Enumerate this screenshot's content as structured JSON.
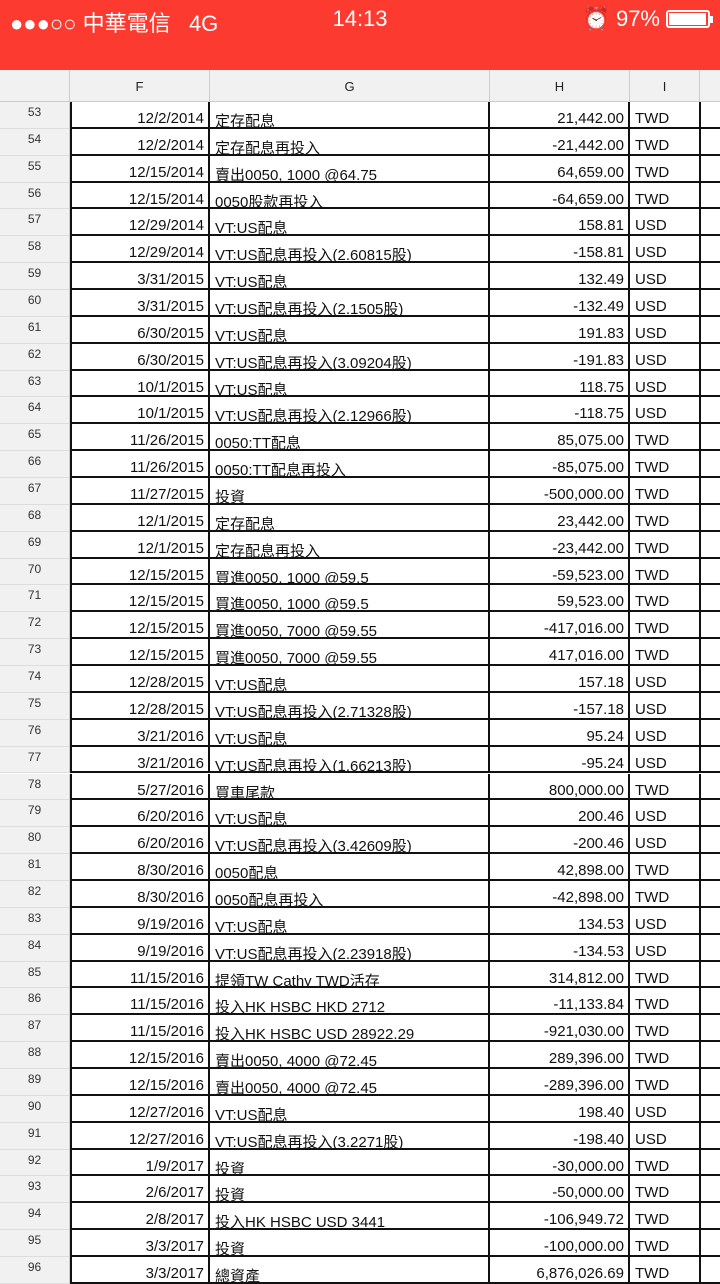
{
  "status_bar": {
    "signal": "●●●○○",
    "carrier": "中華電信",
    "network": "4G",
    "time": "14:13",
    "battery": "97%",
    "battery_level": 0.97,
    "alarm_icon": "alarm-clock-icon"
  },
  "columns": [
    "F",
    "G",
    "H",
    "I"
  ],
  "rows": [
    [
      "53",
      "12/2/2014",
      "定存配息",
      "21,442.00",
      "TWD"
    ],
    [
      "54",
      "12/2/2014",
      "定存配息再投入",
      "-21,442.00",
      "TWD"
    ],
    [
      "55",
      "12/15/2014",
      "賣出0050, 1000 @64.75",
      "64,659.00",
      "TWD"
    ],
    [
      "56",
      "12/15/2014",
      "0050股款再投入",
      "-64,659.00",
      "TWD"
    ],
    [
      "57",
      "12/29/2014",
      "VT:US配息",
      "158.81",
      "USD"
    ],
    [
      "58",
      "12/29/2014",
      "VT:US配息再投入(2.60815股)",
      "-158.81",
      "USD"
    ],
    [
      "59",
      "3/31/2015",
      "VT:US配息",
      "132.49",
      "USD"
    ],
    [
      "60",
      "3/31/2015",
      "VT:US配息再投入(2.1505股)",
      "-132.49",
      "USD"
    ],
    [
      "61",
      "6/30/2015",
      "VT:US配息",
      "191.83",
      "USD"
    ],
    [
      "62",
      "6/30/2015",
      "VT:US配息再投入(3.09204股)",
      "-191.83",
      "USD"
    ],
    [
      "63",
      "10/1/2015",
      "VT:US配息",
      "118.75",
      "USD"
    ],
    [
      "64",
      "10/1/2015",
      "VT:US配息再投入(2.12966股)",
      "-118.75",
      "USD"
    ],
    [
      "65",
      "11/26/2015",
      "0050:TT配息",
      "85,075.00",
      "TWD"
    ],
    [
      "66",
      "11/26/2015",
      "0050:TT配息再投入",
      "-85,075.00",
      "TWD"
    ],
    [
      "67",
      "11/27/2015",
      "投資",
      "-500,000.00",
      "TWD"
    ],
    [
      "68",
      "12/1/2015",
      "定存配息",
      "23,442.00",
      "TWD"
    ],
    [
      "69",
      "12/1/2015",
      "定存配息再投入",
      "-23,442.00",
      "TWD"
    ],
    [
      "70",
      "12/15/2015",
      "買進0050, 1000 @59.5",
      "-59,523.00",
      "TWD"
    ],
    [
      "71",
      "12/15/2015",
      "買進0050, 1000 @59.5",
      "59,523.00",
      "TWD"
    ],
    [
      "72",
      "12/15/2015",
      "買進0050, 7000 @59.55",
      "-417,016.00",
      "TWD"
    ],
    [
      "73",
      "12/15/2015",
      "買進0050, 7000 @59.55",
      "417,016.00",
      "TWD"
    ],
    [
      "74",
      "12/28/2015",
      "VT:US配息",
      "157.18",
      "USD"
    ],
    [
      "75",
      "12/28/2015",
      "VT:US配息再投入(2.71328股)",
      "-157.18",
      "USD"
    ],
    [
      "76",
      "3/21/2016",
      "VT:US配息",
      "95.24",
      "USD"
    ],
    [
      "77",
      "3/21/2016",
      "VT:US配息再投入(1.66213股)",
      "-95.24",
      "USD"
    ],
    [
      "78",
      "5/27/2016",
      "買車尾款",
      "800,000.00",
      "TWD"
    ],
    [
      "79",
      "6/20/2016",
      "VT:US配息",
      "200.46",
      "USD"
    ],
    [
      "80",
      "6/20/2016",
      "VT:US配息再投入(3.42609股)",
      "-200.46",
      "USD"
    ],
    [
      "81",
      "8/30/2016",
      "0050配息",
      "42,898.00",
      "TWD"
    ],
    [
      "82",
      "8/30/2016",
      "0050配息再投入",
      "-42,898.00",
      "TWD"
    ],
    [
      "83",
      "9/19/2016",
      "VT:US配息",
      "134.53",
      "USD"
    ],
    [
      "84",
      "9/19/2016",
      "VT:US配息再投入(2.23918股)",
      "-134.53",
      "USD"
    ],
    [
      "85",
      "11/15/2016",
      "提領TW Cathy TWD活存",
      "314,812.00",
      "TWD"
    ],
    [
      "86",
      "11/15/2016",
      "投入HK HSBC HKD 2712",
      "-11,133.84",
      "TWD"
    ],
    [
      "87",
      "11/15/2016",
      "投入HK HSBC USD 28922.29",
      "-921,030.00",
      "TWD"
    ],
    [
      "88",
      "12/15/2016",
      "賣出0050, 4000 @72.45",
      "289,396.00",
      "TWD"
    ],
    [
      "89",
      "12/15/2016",
      "賣出0050, 4000 @72.45",
      "-289,396.00",
      "TWD"
    ],
    [
      "90",
      "12/27/2016",
      "VT:US配息",
      "198.40",
      "USD"
    ],
    [
      "91",
      "12/27/2016",
      "VT:US配息再投入(3.2271股)",
      "-198.40",
      "USD"
    ],
    [
      "92",
      "1/9/2017",
      "投資",
      "-30,000.00",
      "TWD"
    ],
    [
      "93",
      "2/6/2017",
      "投資",
      "-50,000.00",
      "TWD"
    ],
    [
      "94",
      "2/8/2017",
      "投入HK HSBC USD 3441",
      "-106,949.72",
      "TWD"
    ],
    [
      "95",
      "3/3/2017",
      "投資",
      "-100,000.00",
      "TWD"
    ],
    [
      "96",
      "3/3/2017",
      "總資產",
      "6,876,026.69",
      "TWD"
    ]
  ]
}
